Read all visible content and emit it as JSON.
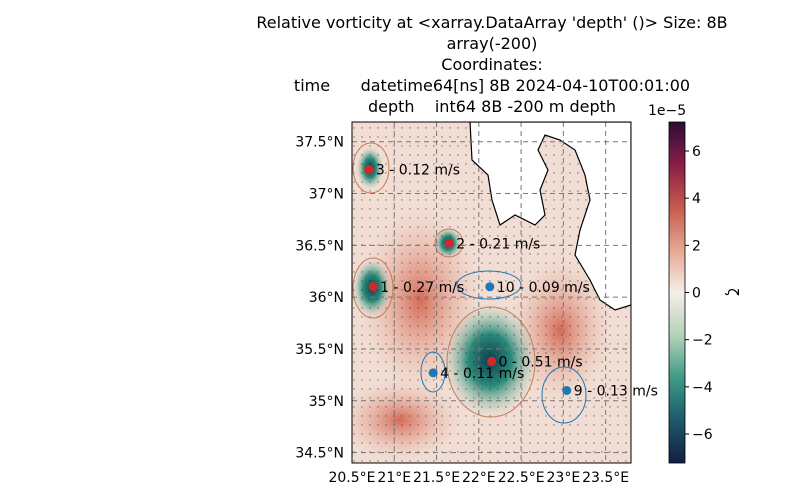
{
  "chart_data": {
    "type": "map",
    "title": [
      "Relative vorticity at <xarray.DataArray 'depth' ()> Size: 8B",
      "array(-200)",
      "Coordinates:",
      "time      datetime64[ns] 8B 2024-04-10T00:01:00",
      "depth    int64 8B -200 m depth"
    ],
    "xlim": [
      20.5,
      23.8
    ],
    "ylim": [
      34.4,
      37.69
    ],
    "xticks": [
      {
        "value": 20.5,
        "label": "20.5°E"
      },
      {
        "value": 21,
        "label": "21°E"
      },
      {
        "value": 21.5,
        "label": "21.5°E"
      },
      {
        "value": 22,
        "label": "22°E"
      },
      {
        "value": 22.5,
        "label": "22.5°E"
      },
      {
        "value": 23,
        "label": "23°E"
      },
      {
        "value": 23.5,
        "label": "23.5°E"
      }
    ],
    "yticks": [
      {
        "value": 34.5,
        "label": "34.5°N"
      },
      {
        "value": 35,
        "label": "35°N"
      },
      {
        "value": 35.5,
        "label": "35.5°N"
      },
      {
        "value": 36,
        "label": "36°N"
      },
      {
        "value": 36.5,
        "label": "36.5°N"
      },
      {
        "value": 37,
        "label": "37°N"
      },
      {
        "value": 37.5,
        "label": "37.5°N"
      }
    ],
    "grid": true,
    "eddies": [
      {
        "label": "0 - 0.51 m/s",
        "lon": 22.15,
        "lat": 35.38,
        "color": "#d62728"
      },
      {
        "label": "1 - 0.27 m/s",
        "lon": 20.75,
        "lat": 36.1,
        "color": "#d62728"
      },
      {
        "label": "2 - 0.21 m/s",
        "lon": 21.65,
        "lat": 36.52,
        "color": "#d62728"
      },
      {
        "label": "3 - 0.12 m/s",
        "lon": 20.7,
        "lat": 37.23,
        "color": "#d62728"
      },
      {
        "label": "4 - 0.11 m/s",
        "lon": 21.46,
        "lat": 35.27,
        "color": "#1f77b4"
      },
      {
        "label": "9 - 0.13 m/s",
        "lon": 23.04,
        "lat": 35.1,
        "color": "#1f77b4"
      },
      {
        "label": "10 - 0.09 m/s",
        "lon": 22.13,
        "lat": 36.1,
        "color": "#1f77b4"
      }
    ],
    "colorbar": {
      "label": "ζ",
      "offset_label": "1e−5",
      "clim": [
        -7.23,
        7.23
      ],
      "ticks": [
        {
          "value": -6,
          "label": "−6"
        },
        {
          "value": -4,
          "label": "−4"
        },
        {
          "value": -2,
          "label": "−2"
        },
        0,
        2,
        4,
        6
      ],
      "colors": [
        "#151d44",
        "#1c5a6a",
        "#3f9a85",
        "#b5d2b7",
        "#f6eee9",
        "#e4a792",
        "#c65a4c",
        "#8a1e48",
        "#2d0c34"
      ]
    }
  }
}
